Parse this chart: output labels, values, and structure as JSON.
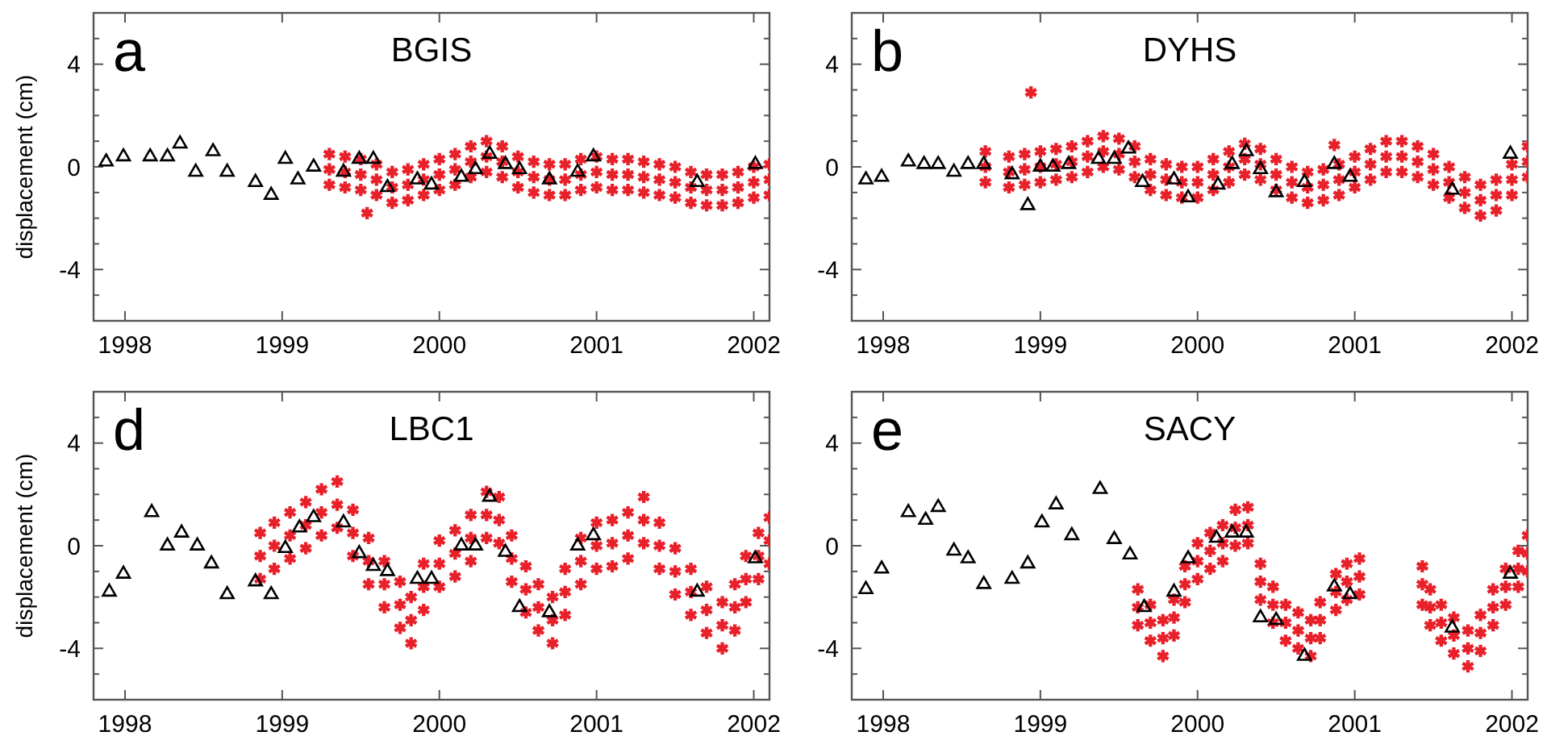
{
  "chart_data": [
    {
      "type": "scatter",
      "title": "BGIS",
      "ylabel": "displacement (cm)",
      "annotations": [
        "a"
      ],
      "xlim": [
        1997.8,
        2002.1
      ],
      "xticks": [
        1998,
        1999,
        2000,
        2001,
        2002
      ],
      "ylim": [
        -6,
        6
      ],
      "yticks": [
        -4,
        0,
        4,
        {
          "value": -5,
          "label": null
        },
        {
          "value": -3,
          "label": null
        },
        {
          "value": -2,
          "label": null
        },
        {
          "value": -1,
          "label": null
        },
        {
          "value": 1,
          "label": null
        },
        {
          "value": 2,
          "label": null
        },
        {
          "value": 3,
          "label": null
        },
        {
          "value": 5,
          "label": null
        }
      ],
      "series": [
        {
          "type": "scatter",
          "marker": "cross",
          "color": "#e8202a",
          "x": [
            1999.3,
            1999.3,
            1999.3,
            1999.4,
            1999.4,
            1999.4,
            1999.5,
            1999.5,
            1999.5,
            1999.6,
            1999.6,
            1999.6,
            1999.7,
            1999.7,
            1999.7,
            1999.8,
            1999.8,
            1999.8,
            1999.9,
            1999.9,
            1999.9,
            2000.0,
            2000.0,
            2000.0,
            2000.1,
            2000.1,
            2000.1,
            2000.2,
            2000.2,
            2000.2,
            2000.3,
            2000.3,
            2000.3,
            2000.4,
            2000.4,
            2000.4,
            2000.5,
            2000.5,
            2000.5,
            2000.6,
            2000.6,
            2000.6,
            2000.7,
            2000.7,
            2000.7,
            2000.8,
            2000.8,
            2000.8,
            2000.9,
            2000.9,
            2000.9,
            2001.0,
            2001.0,
            2001.0,
            2001.1,
            2001.1,
            2001.1,
            2001.2,
            2001.2,
            2001.2,
            2001.3,
            2001.3,
            2001.3,
            2001.4,
            2001.4,
            2001.4,
            2001.5,
            2001.5,
            2001.5,
            2001.6,
            2001.6,
            2001.6,
            2001.7,
            2001.7,
            2001.7,
            2001.8,
            2001.8,
            2001.8,
            2001.9,
            2001.9,
            2001.9,
            2002.0,
            2002.0,
            2002.0,
            2002.1,
            2002.1,
            2002.1,
            1999.54
          ],
          "values": [
            0.5,
            -0.1,
            -0.7,
            0.4,
            -0.2,
            -0.8,
            0.3,
            -0.3,
            -0.9,
            0.1,
            -0.5,
            -1.1,
            -0.2,
            -0.8,
            -1.4,
            -0.1,
            -0.7,
            -1.3,
            0.1,
            -0.5,
            -1.1,
            0.3,
            -0.3,
            -0.9,
            0.5,
            -0.1,
            -0.7,
            0.8,
            0.2,
            -0.4,
            1.0,
            0.4,
            -0.2,
            0.8,
            0.2,
            -0.4,
            0.4,
            -0.2,
            -0.8,
            0.2,
            -0.4,
            -1.0,
            0.1,
            -0.5,
            -1.1,
            0.1,
            -0.5,
            -1.1,
            0.3,
            -0.3,
            -0.9,
            0.4,
            -0.2,
            -0.8,
            0.3,
            -0.3,
            -0.9,
            0.3,
            -0.3,
            -0.9,
            0.2,
            -0.4,
            -1.0,
            0.1,
            -0.5,
            -1.1,
            0.0,
            -0.6,
            -1.2,
            -0.2,
            -0.8,
            -1.4,
            -0.3,
            -0.9,
            -1.5,
            -0.3,
            -0.9,
            -1.5,
            -0.2,
            -0.8,
            -1.4,
            0.0,
            -0.6,
            -1.2,
            0.1,
            -0.5,
            -1.1,
            -1.8
          ]
        },
        {
          "type": "scatter",
          "marker": "triangle",
          "color": "#000000",
          "x": [
            1997.88,
            1997.99,
            1998.16,
            1998.27,
            1998.35,
            1998.45,
            1998.56,
            1998.65,
            1998.83,
            1998.93,
            1999.02,
            1999.1,
            1999.2,
            1999.39,
            1999.49,
            1999.58,
            1999.67,
            1999.86,
            1999.95,
            2000.14,
            2000.23,
            2000.32,
            2000.42,
            2000.51,
            2000.7,
            2000.88,
            2000.98,
            2001.64,
            2002.01
          ],
          "values": [
            0.2,
            0.4,
            0.4,
            0.4,
            0.9,
            -0.2,
            0.6,
            -0.2,
            -0.6,
            -1.1,
            0.3,
            -0.5,
            0.0,
            -0.2,
            0.3,
            0.3,
            -0.8,
            -0.5,
            -0.7,
            -0.4,
            -0.1,
            0.5,
            0.1,
            -0.1,
            -0.5,
            -0.2,
            0.4,
            -0.6,
            0.1
          ]
        }
      ]
    },
    {
      "type": "scatter",
      "title": "DYHS",
      "annotations": [
        "b"
      ],
      "xlim": [
        1997.8,
        2002.1
      ],
      "xticks": [
        1998,
        1999,
        2000,
        2001,
        2002
      ],
      "ylim": [
        -6,
        6
      ],
      "yticks": [
        -4,
        0,
        4,
        {
          "value": -5,
          "label": null
        },
        {
          "value": -3,
          "label": null
        },
        {
          "value": -2,
          "label": null
        },
        {
          "value": -1,
          "label": null
        },
        {
          "value": 1,
          "label": null
        },
        {
          "value": 2,
          "label": null
        },
        {
          "value": 3,
          "label": null
        },
        {
          "value": 5,
          "label": null
        }
      ],
      "series": [
        {
          "type": "scatter",
          "marker": "cross",
          "color": "#e8202a",
          "x": [
            1998.65,
            1998.65,
            1998.65,
            1998.8,
            1998.8,
            1998.8,
            1998.9,
            1998.9,
            1998.9,
            1999.0,
            1999.0,
            1999.0,
            1999.1,
            1999.1,
            1999.1,
            1999.2,
            1999.2,
            1999.2,
            1999.3,
            1999.3,
            1999.3,
            1999.4,
            1999.4,
            1999.4,
            1999.5,
            1999.5,
            1999.5,
            1999.6,
            1999.6,
            1999.6,
            1999.7,
            1999.7,
            1999.7,
            1999.8,
            1999.8,
            1999.8,
            1999.9,
            1999.9,
            1999.9,
            2000.0,
            2000.0,
            2000.0,
            2000.1,
            2000.1,
            2000.1,
            2000.2,
            2000.2,
            2000.2,
            2000.3,
            2000.3,
            2000.3,
            2000.4,
            2000.4,
            2000.4,
            2000.5,
            2000.5,
            2000.5,
            2000.6,
            2000.6,
            2000.6,
            2000.7,
            2000.7,
            2000.7,
            2000.8,
            2000.8,
            2000.8,
            2000.9,
            2000.9,
            2000.9,
            2001.0,
            2001.0,
            2001.0,
            2001.1,
            2001.1,
            2001.1,
            2001.2,
            2001.2,
            2001.2,
            2001.3,
            2001.3,
            2001.3,
            2001.4,
            2001.4,
            2001.4,
            2001.5,
            2001.5,
            2001.5,
            2001.6,
            2001.6,
            2001.6,
            2001.7,
            2001.7,
            2001.7,
            2001.8,
            2001.8,
            2001.8,
            2001.9,
            2001.9,
            2001.9,
            2002.0,
            2002.0,
            2002.0,
            2002.1,
            2002.1,
            2002.1,
            1998.94,
            2000.87
          ],
          "values": [
            0.6,
            0.0,
            -0.6,
            0.4,
            -0.2,
            -0.8,
            0.5,
            -0.1,
            -0.7,
            0.6,
            0.0,
            -0.6,
            0.7,
            0.1,
            -0.5,
            0.8,
            0.2,
            -0.4,
            1.0,
            0.4,
            -0.2,
            1.2,
            0.6,
            0.0,
            1.1,
            0.5,
            -0.1,
            0.8,
            0.2,
            -0.4,
            0.3,
            -0.3,
            -0.9,
            0.1,
            -0.5,
            -1.1,
            0.0,
            -0.6,
            -1.2,
            0.0,
            -0.6,
            -1.2,
            0.3,
            -0.3,
            -0.9,
            0.6,
            0.0,
            -0.6,
            0.9,
            0.3,
            -0.3,
            0.7,
            0.1,
            -0.5,
            0.3,
            -0.3,
            -0.9,
            0.0,
            -0.6,
            -1.2,
            -0.2,
            -0.8,
            -1.4,
            -0.1,
            -0.7,
            -1.3,
            0.1,
            -0.5,
            -1.1,
            0.4,
            -0.2,
            -0.8,
            0.7,
            0.1,
            -0.5,
            1.0,
            0.4,
            -0.2,
            1.0,
            0.4,
            -0.2,
            0.8,
            0.2,
            -0.4,
            0.5,
            -0.1,
            -0.7,
            0.0,
            -0.6,
            -1.2,
            -0.4,
            -1.0,
            -1.6,
            -0.7,
            -1.3,
            -1.9,
            -0.5,
            -1.1,
            -1.7,
            0.1,
            -0.5,
            -1.1,
            0.8,
            0.2,
            -0.4,
            2.9,
            0.85
          ]
        },
        {
          "type": "scatter",
          "marker": "triangle",
          "color": "#000000",
          "x": [
            1997.89,
            1997.99,
            1998.16,
            1998.26,
            1998.35,
            1998.45,
            1998.54,
            1998.64,
            1998.82,
            1998.92,
            1999.0,
            1999.08,
            1999.18,
            1999.37,
            1999.47,
            1999.56,
            1999.65,
            1999.85,
            1999.94,
            2000.13,
            2000.22,
            2000.31,
            2000.4,
            2000.5,
            2000.68,
            2000.87,
            2000.97,
            2001.62,
            2001.99
          ],
          "values": [
            -0.5,
            -0.4,
            0.2,
            0.1,
            0.1,
            -0.2,
            0.1,
            0.1,
            -0.3,
            -1.5,
            0.0,
            0.0,
            0.1,
            0.3,
            0.3,
            0.7,
            -0.6,
            -0.5,
            -1.2,
            -0.7,
            0.1,
            0.6,
            -0.1,
            -1.0,
            -0.6,
            0.1,
            -0.4,
            -0.9,
            0.5
          ]
        }
      ]
    },
    {
      "type": "scatter",
      "title": "LBC1",
      "ylabel": "displacement (cm)",
      "annotations": [
        "d"
      ],
      "xlim": [
        1997.8,
        2002.1
      ],
      "xticks": [
        1998,
        1999,
        2000,
        2001,
        2002
      ],
      "ylim": [
        -6,
        6
      ],
      "yticks": [
        -4,
        0,
        4,
        {
          "value": -5,
          "label": null
        },
        {
          "value": -3,
          "label": null
        },
        {
          "value": -2,
          "label": null
        },
        {
          "value": -1,
          "label": null
        },
        {
          "value": 1,
          "label": null
        },
        {
          "value": 2,
          "label": null
        },
        {
          "value": 3,
          "label": null
        },
        {
          "value": 5,
          "label": null
        }
      ],
      "series": [
        {
          "type": "scatter",
          "marker": "cross",
          "color": "#e8202a",
          "x": [
            1998.86,
            1998.86,
            1998.86,
            1998.95,
            1998.95,
            1998.95,
            1999.05,
            1999.05,
            1999.05,
            1999.15,
            1999.15,
            1999.15,
            1999.25,
            1999.25,
            1999.25,
            1999.35,
            1999.35,
            1999.35,
            1999.45,
            1999.45,
            1999.45,
            1999.55,
            1999.55,
            1999.55,
            1999.65,
            1999.65,
            1999.65,
            1999.75,
            1999.75,
            1999.75,
            1999.82,
            1999.82,
            1999.82,
            1999.9,
            1999.9,
            1999.9,
            2000.0,
            2000.0,
            2000.0,
            2000.1,
            2000.1,
            2000.1,
            2000.2,
            2000.2,
            2000.2,
            2000.3,
            2000.3,
            2000.3,
            2000.38,
            2000.38,
            2000.38,
            2000.46,
            2000.46,
            2000.46,
            2000.55,
            2000.55,
            2000.55,
            2000.63,
            2000.63,
            2000.63,
            2000.72,
            2000.72,
            2000.72,
            2000.8,
            2000.8,
            2000.8,
            2000.9,
            2000.9,
            2000.9,
            2001.0,
            2001.0,
            2001.0,
            2001.1,
            2001.1,
            2001.1,
            2001.2,
            2001.2,
            2001.2,
            2001.3,
            2001.3,
            2001.3,
            2001.4,
            2001.4,
            2001.4,
            2001.5,
            2001.5,
            2001.5,
            2001.6,
            2001.6,
            2001.6,
            2001.7,
            2001.7,
            2001.7,
            2001.8,
            2001.8,
            2001.8,
            2001.88,
            2001.88,
            2001.88,
            2001.95,
            2001.95,
            2001.95,
            2002.03,
            2002.03,
            2002.03,
            2002.1,
            2002.1,
            2002.1
          ],
          "values": [
            0.5,
            -0.4,
            -1.3,
            0.9,
            0.0,
            -0.9,
            1.3,
            0.4,
            -0.5,
            1.7,
            0.8,
            -0.1,
            2.2,
            1.3,
            0.4,
            2.5,
            1.6,
            0.7,
            1.4,
            0.5,
            -0.4,
            0.3,
            -0.6,
            -1.5,
            -0.6,
            -1.5,
            -2.4,
            -1.4,
            -2.3,
            -3.2,
            -2.0,
            -2.9,
            -3.8,
            -0.7,
            -1.6,
            -2.5,
            0.2,
            -0.7,
            -1.6,
            0.6,
            -0.3,
            -1.2,
            1.2,
            0.3,
            -0.6,
            2.1,
            1.2,
            0.3,
            1.9,
            1.0,
            0.1,
            0.4,
            -0.5,
            -1.4,
            -0.8,
            -1.7,
            -2.6,
            -1.5,
            -2.4,
            -3.3,
            -2.0,
            -2.9,
            -3.8,
            -0.9,
            -1.8,
            -2.7,
            0.3,
            -0.6,
            -1.5,
            0.9,
            0.0,
            -0.9,
            1.0,
            0.1,
            -0.8,
            1.3,
            0.4,
            -0.5,
            1.9,
            1.0,
            0.1,
            0.9,
            0.0,
            -0.9,
            -0.1,
            -1.0,
            -1.9,
            -0.9,
            -1.8,
            -2.7,
            -1.6,
            -2.5,
            -3.4,
            -2.2,
            -3.1,
            -4.0,
            -1.5,
            -2.4,
            -3.3,
            -0.4,
            -1.3,
            -2.2,
            0.5,
            -0.4,
            -1.3,
            1.1,
            0.2,
            -0.7
          ]
        },
        {
          "type": "scatter",
          "marker": "triangle",
          "color": "#000000",
          "x": [
            1997.9,
            1997.99,
            1998.17,
            1998.27,
            1998.36,
            1998.46,
            1998.55,
            1998.65,
            1998.83,
            1998.93,
            1999.02,
            1999.11,
            1999.2,
            1999.39,
            1999.49,
            1999.58,
            1999.67,
            1999.86,
            1999.95,
            2000.14,
            2000.23,
            2000.32,
            2000.42,
            2000.51,
            2000.7,
            2000.88,
            2000.98,
            2001.64,
            2002.01
          ],
          "values": [
            -1.8,
            -1.1,
            1.3,
            0.0,
            0.5,
            0.0,
            -0.7,
            -1.9,
            -1.4,
            -1.9,
            -0.1,
            0.7,
            1.1,
            0.9,
            -0.3,
            -0.8,
            -1.0,
            -1.3,
            -1.3,
            0.0,
            0.0,
            1.9,
            -0.25,
            -2.4,
            -2.6,
            0.0,
            0.4,
            -1.8,
            -0.5
          ]
        }
      ]
    },
    {
      "type": "scatter",
      "title": "SACY",
      "annotations": [
        "e"
      ],
      "xlim": [
        1997.8,
        2002.1
      ],
      "xticks": [
        1998,
        1999,
        2000,
        2001,
        2002
      ],
      "ylim": [
        -6,
        6
      ],
      "yticks": [
        -4,
        0,
        4,
        {
          "value": -5,
          "label": null
        },
        {
          "value": -3,
          "label": null
        },
        {
          "value": -2,
          "label": null
        },
        {
          "value": -1,
          "label": null
        },
        {
          "value": 1,
          "label": null
        },
        {
          "value": 2,
          "label": null
        },
        {
          "value": 3,
          "label": null
        },
        {
          "value": 5,
          "label": null
        }
      ],
      "series": [
        {
          "type": "scatter",
          "marker": "cross",
          "color": "#e8202a",
          "x": [
            1999.62,
            1999.62,
            1999.62,
            1999.7,
            1999.7,
            1999.7,
            1999.78,
            1999.78,
            1999.78,
            1999.85,
            1999.85,
            1999.85,
            1999.92,
            1999.92,
            1999.92,
            2000.0,
            2000.0,
            2000.0,
            2000.08,
            2000.08,
            2000.08,
            2000.16,
            2000.16,
            2000.16,
            2000.24,
            2000.24,
            2000.24,
            2000.32,
            2000.32,
            2000.32,
            2000.4,
            2000.4,
            2000.4,
            2000.48,
            2000.48,
            2000.48,
            2000.56,
            2000.56,
            2000.56,
            2000.64,
            2000.64,
            2000.64,
            2000.72,
            2000.72,
            2000.72,
            2000.78,
            2000.78,
            2000.78,
            2000.88,
            2000.88,
            2000.88,
            2000.95,
            2000.95,
            2000.95,
            2001.03,
            2001.03,
            2001.03,
            2001.43,
            2001.43,
            2001.43,
            2001.48,
            2001.48,
            2001.48,
            2001.55,
            2001.55,
            2001.55,
            2001.63,
            2001.63,
            2001.63,
            2001.72,
            2001.72,
            2001.72,
            2001.8,
            2001.8,
            2001.8,
            2001.88,
            2001.88,
            2001.88,
            2001.96,
            2001.96,
            2001.96,
            2002.04,
            2002.04,
            2002.04,
            2002.1,
            2002.1,
            2002.1
          ],
          "values": [
            -1.7,
            -2.4,
            -3.1,
            -2.3,
            -3.0,
            -3.7,
            -2.9,
            -3.6,
            -4.3,
            -2.1,
            -2.8,
            -3.5,
            -0.8,
            -1.5,
            -2.2,
            0.1,
            -0.6,
            -1.3,
            0.5,
            -0.2,
            -0.9,
            0.8,
            0.1,
            -0.6,
            1.4,
            0.7,
            0.0,
            1.5,
            0.8,
            0.1,
            -0.7,
            -1.4,
            -2.1,
            -1.6,
            -2.3,
            -3.0,
            -2.3,
            -3.0,
            -3.7,
            -2.6,
            -3.3,
            -4.0,
            -2.9,
            -3.6,
            -4.3,
            -2.2,
            -2.9,
            -3.6,
            -1.1,
            -1.8,
            -2.5,
            -0.7,
            -1.4,
            -2.1,
            -0.5,
            -1.2,
            -1.9,
            -0.8,
            -1.5,
            -2.3,
            -1.7,
            -2.4,
            -3.1,
            -2.3,
            -3.0,
            -3.7,
            -2.8,
            -3.5,
            -4.2,
            -3.3,
            -4.0,
            -4.7,
            -2.7,
            -3.4,
            -4.1,
            -1.7,
            -2.4,
            -3.1,
            -0.9,
            -1.6,
            -2.3,
            -0.2,
            -0.9,
            -1.6,
            0.4,
            -0.3,
            -1.0
          ]
        },
        {
          "type": "scatter",
          "marker": "triangle",
          "color": "#000000",
          "x": [
            1997.89,
            1997.99,
            1998.16,
            1998.27,
            1998.35,
            1998.45,
            1998.54,
            1998.64,
            1998.82,
            1998.92,
            1999.01,
            1999.1,
            1999.2,
            1999.38,
            1999.47,
            1999.57,
            1999.66,
            1999.85,
            1999.94,
            2000.12,
            2000.22,
            2000.31,
            2000.4,
            2000.5,
            2000.68,
            2000.87,
            2000.97,
            2001.62,
            2001.99
          ],
          "values": [
            -1.7,
            -0.9,
            1.3,
            1.0,
            1.5,
            -0.2,
            -0.5,
            -1.5,
            -1.3,
            -0.7,
            0.9,
            1.6,
            0.4,
            2.2,
            0.25,
            -0.35,
            -2.4,
            -1.8,
            -0.5,
            0.3,
            0.5,
            0.5,
            -2.8,
            -2.9,
            -4.3,
            -1.6,
            -1.9,
            -3.2,
            -1.1
          ]
        }
      ]
    }
  ]
}
